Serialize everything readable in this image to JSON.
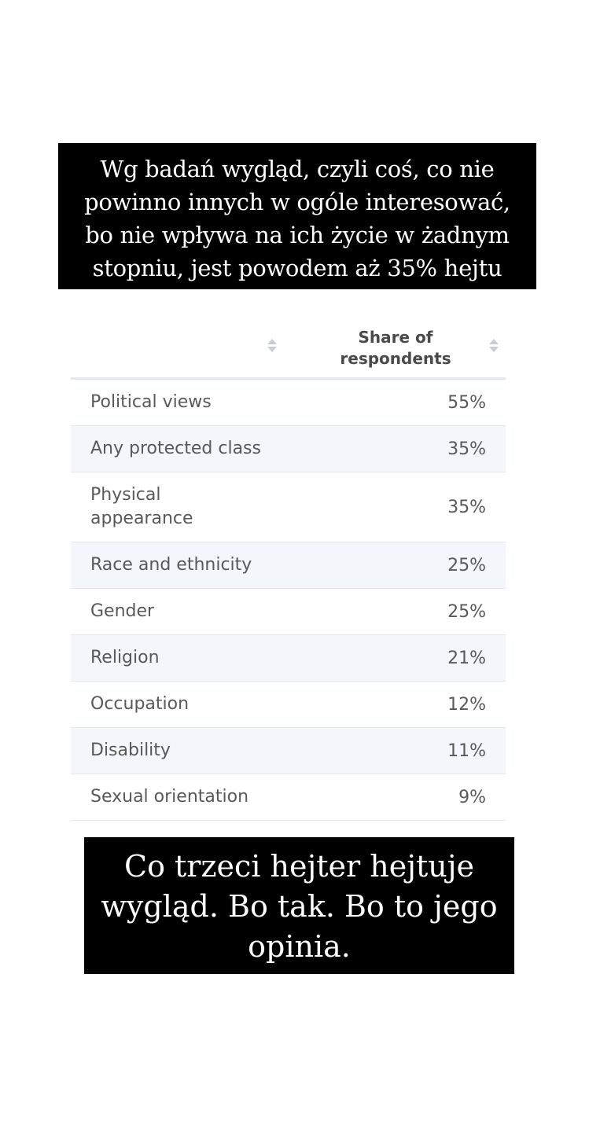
{
  "captions": {
    "top": [
      "Wg badań wygląd, czyli coś, co nie",
      "powinno innych w ogóle interesować,",
      "bo nie wpływa na ich życie w żadnym",
      "stopniu, jest powodem aż 35% hejtu"
    ],
    "bottom": [
      "Co trzeci hejter hejtuje",
      "wygląd. Bo tak. Bo to jego",
      "opinia."
    ]
  },
  "table": {
    "header": {
      "col1": "",
      "col2": [
        "Share of",
        "respondents"
      ]
    },
    "sort_icon": "sort-icon",
    "rows": [
      {
        "name": [
          "Political views"
        ],
        "value": "55%"
      },
      {
        "name": [
          "Any protected class"
        ],
        "value": "35%"
      },
      {
        "name": [
          "Physical",
          "appearance"
        ],
        "value": "35%"
      },
      {
        "name": [
          "Race and ethnicity"
        ],
        "value": "25%"
      },
      {
        "name": [
          "Gender"
        ],
        "value": "25%"
      },
      {
        "name": [
          "Religion"
        ],
        "value": "21%"
      },
      {
        "name": [
          "Occupation"
        ],
        "value": "12%"
      },
      {
        "name": [
          "Disability"
        ],
        "value": "11%"
      },
      {
        "name": [
          "Sexual orientation"
        ],
        "value": "9%"
      }
    ]
  },
  "colors": {
    "caption_bg": "#000000",
    "caption_text": "#ffffff",
    "row_alt_bg": "#f3f6fa",
    "text": "#595959"
  }
}
